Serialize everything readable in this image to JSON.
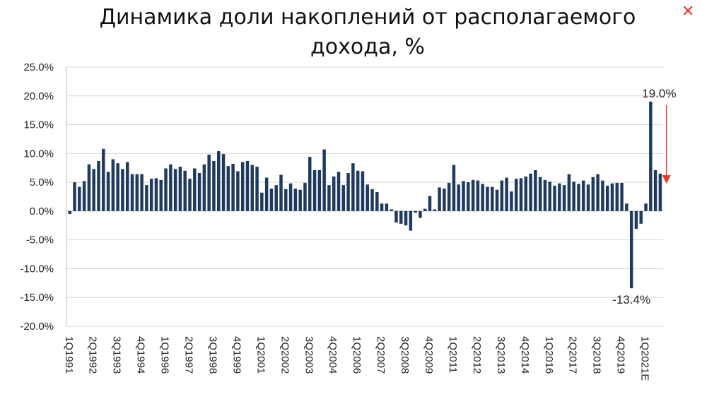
{
  "window": {
    "close_icon": "close-icon"
  },
  "chart_data": {
    "type": "bar",
    "title": "Динамика доли накоплений от располагаемого дохода, %",
    "xlabel": "",
    "ylabel": "",
    "ylim": [
      -20,
      25
    ],
    "y_ticks": [
      "25.0%",
      "20.0%",
      "15.0%",
      "10.0%",
      "5.0%",
      "0.0%",
      "-5.0%",
      "-10.0%",
      "-15.0%",
      "-20.0%"
    ],
    "grid": true,
    "bar_color": "#1f3a5f",
    "arrow_color": "#e8362b",
    "x_labels": [
      "1Q1991",
      "2Q1992",
      "3Q1993",
      "4Q1994",
      "1Q1996",
      "2Q1997",
      "3Q1998",
      "4Q1999",
      "1Q2001",
      "2Q2002",
      "3Q2003",
      "4Q2004",
      "1Q2006",
      "2Q2007",
      "3Q2008",
      "4Q2009",
      "1Q2011",
      "2Q2012",
      "3Q2013",
      "4Q2014",
      "1Q2016",
      "2Q2017",
      "3Q2018",
      "4Q2019",
      "1Q2021E"
    ],
    "values": [
      -0.5,
      5.0,
      4.2,
      5.2,
      8.1,
      7.3,
      8.7,
      10.8,
      6.8,
      9.0,
      8.3,
      7.3,
      8.5,
      6.4,
      6.4,
      6.4,
      4.5,
      5.6,
      5.7,
      5.4,
      7.4,
      8.1,
      7.3,
      7.7,
      7.0,
      5.6,
      7.4,
      6.6,
      8.1,
      9.8,
      8.7,
      10.4,
      9.9,
      7.8,
      8.2,
      6.9,
      8.5,
      8.7,
      8.0,
      7.7,
      3.2,
      5.8,
      3.9,
      4.5,
      6.3,
      3.8,
      4.8,
      3.9,
      3.7,
      4.9,
      9.4,
      7.1,
      7.1,
      10.7,
      4.5,
      6.0,
      6.8,
      4.5,
      6.6,
      8.3,
      7.0,
      6.9,
      4.6,
      3.8,
      3.3,
      1.3,
      1.3,
      0.3,
      -2.0,
      -2.2,
      -2.5,
      -3.4,
      -0.3,
      -1.2,
      0.4,
      2.6,
      0.3,
      4.1,
      3.9,
      4.9,
      8.0,
      4.6,
      5.2,
      5.0,
      5.4,
      5.3,
      4.7,
      4.2,
      4.2,
      3.7,
      5.3,
      5.8,
      3.4,
      5.6,
      5.7,
      6.0,
      6.5,
      7.1,
      5.9,
      5.4,
      5.1,
      4.4,
      4.8,
      4.5,
      6.4,
      5.1,
      4.7,
      5.3,
      4.6,
      5.9,
      6.4,
      5.3,
      4.4,
      4.8,
      4.9,
      4.9,
      1.3,
      -13.4,
      -3.1,
      -2.2,
      1.3,
      19.0,
      7.1,
      6.5
    ],
    "annotations": [
      {
        "text": "19.0%",
        "value": 19.0,
        "bar_index": 121,
        "position": "above"
      },
      {
        "text": "-13.4%",
        "value": -13.4,
        "bar_index": 117,
        "position": "below"
      }
    ],
    "arrow": {
      "from_value": 18.4,
      "to_value": 5.0,
      "bar_index": 124
    }
  }
}
